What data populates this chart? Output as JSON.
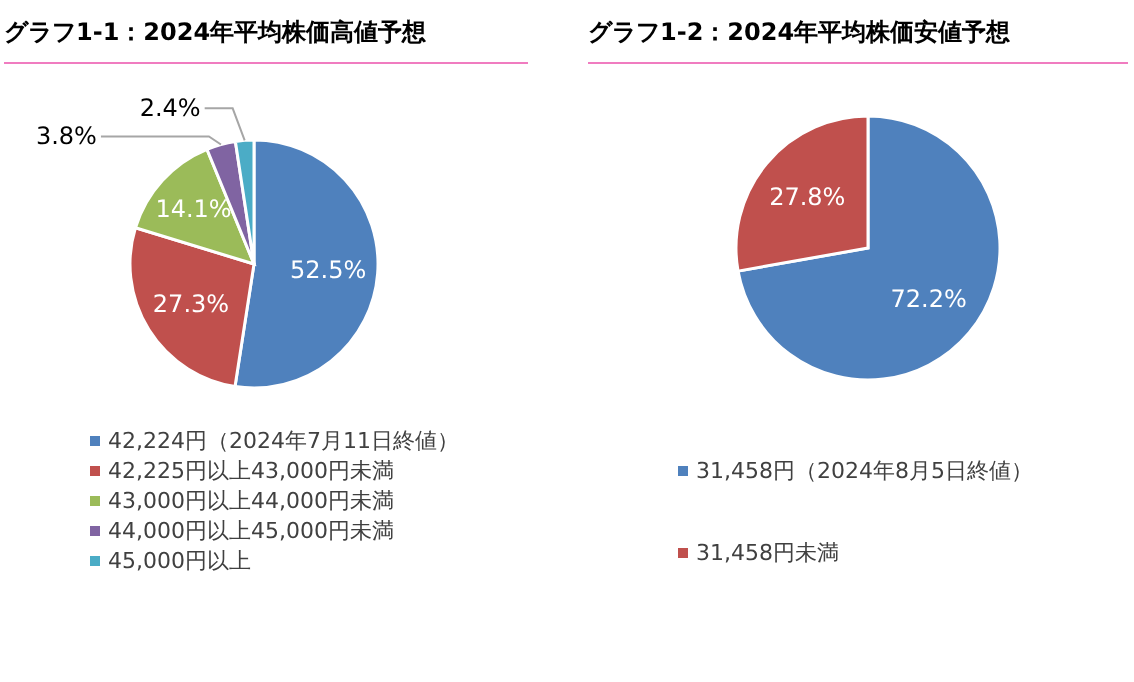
{
  "chart_data": [
    {
      "type": "pie",
      "title": "グラフ1-1：2024年平均株価高値予想",
      "categories": [
        "42,224円（2024年7月11日終値）",
        "42,225円以上43,000円未満",
        "43,000円以上44,000円未満",
        "44,000円以上45,000円未満",
        "45,000円以上"
      ],
      "values": [
        52.5,
        27.3,
        14.1,
        3.8,
        2.4
      ],
      "colors": [
        "#4f81bd",
        "#c0504d",
        "#9bbb59",
        "#8064a2",
        "#4bacc6"
      ],
      "value_labels": [
        "52.5%",
        "27.3%",
        "14.1%",
        "3.8%",
        "2.4%"
      ],
      "legend": "bottom"
    },
    {
      "type": "pie",
      "title": "グラフ1-2：2024年平均株価安値予想",
      "categories": [
        "31,458円（2024年8月5日終値）",
        "31,458円未満"
      ],
      "values": [
        72.2,
        27.8
      ],
      "colors": [
        "#4f81bd",
        "#c0504d"
      ],
      "value_labels": [
        "72.2%",
        "27.8%"
      ],
      "legend": "bottom"
    }
  ]
}
